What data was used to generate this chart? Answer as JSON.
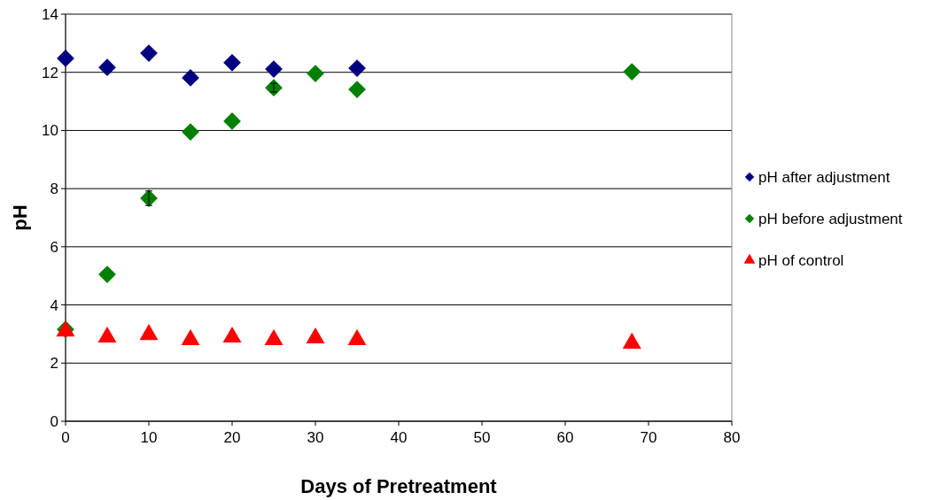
{
  "chart_data": {
    "type": "scatter",
    "xlabel": "Days of Pretreatment",
    "ylabel": "pH",
    "xlim": [
      0,
      80
    ],
    "xticks": [
      0,
      10,
      20,
      30,
      40,
      50,
      60,
      70,
      80
    ],
    "ylim": [
      0,
      14
    ],
    "yticks": [
      0,
      2,
      4,
      6,
      8,
      10,
      12,
      14
    ],
    "grid": "y",
    "legend": "right",
    "series": [
      {
        "name": "pH after adjustment",
        "color": "#000080",
        "marker": "diamond",
        "x": [
          0,
          5,
          10,
          15,
          20,
          25,
          35
        ],
        "values": [
          12.48,
          12.17,
          12.66,
          11.81,
          12.33,
          12.11,
          12.14
        ]
      },
      {
        "name": "pH before adjustment",
        "color": "#008000",
        "marker": "diamond",
        "x": [
          0,
          5,
          10,
          15,
          20,
          25,
          30,
          35,
          68
        ],
        "values": [
          3.16,
          5.05,
          7.67,
          9.95,
          10.32,
          11.47,
          11.96,
          11.41,
          12.02
        ],
        "errors": [
          null,
          null,
          0.25,
          null,
          null,
          0.15,
          null,
          null,
          null
        ]
      },
      {
        "name": "pH of control",
        "color": "#ff0000",
        "marker": "triangle",
        "x": [
          0,
          5,
          10,
          15,
          20,
          25,
          30,
          35,
          68
        ],
        "values": [
          3.1,
          2.89,
          2.98,
          2.8,
          2.89,
          2.8,
          2.86,
          2.8,
          2.68
        ]
      }
    ]
  }
}
